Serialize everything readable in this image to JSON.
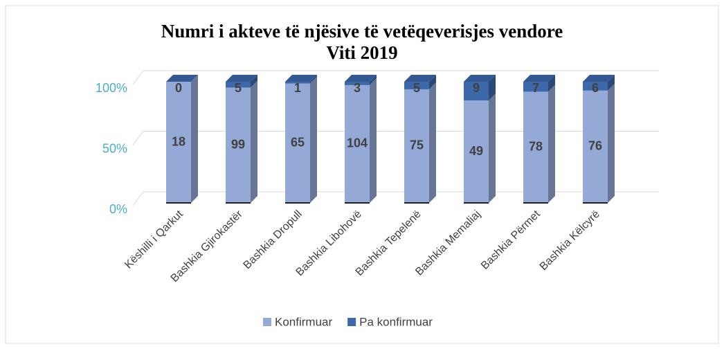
{
  "chart_data": {
    "type": "bar",
    "stacked_percent": true,
    "title": "Numri i akteve të njësive të vetëqeverisjes vendore",
    "subtitle": "Viti 2019",
    "categories": [
      "Këshilli i Qarkut",
      "Bashkia Gjirokastër",
      "Bashkia Dropull",
      "Bashkia Libohovë",
      "Bashkia Tepelenë",
      "Bashkia Memaliaj",
      "Bashkia Përmet",
      "Bashkia Këlcyrë"
    ],
    "series": [
      {
        "name": "Konfirmuar",
        "color": "#95a9d6",
        "values": [
          18,
          99,
          65,
          104,
          75,
          49,
          78,
          76
        ]
      },
      {
        "name": "Pa konfirmuar",
        "color": "#3d68aa",
        "values": [
          0,
          5,
          1,
          3,
          5,
          9,
          7,
          6
        ]
      }
    ],
    "ylim": [
      0,
      100
    ],
    "yticks": [
      {
        "value": 0,
        "label": "0%"
      },
      {
        "value": 50,
        "label": "50%"
      },
      {
        "value": 100,
        "label": "100%"
      }
    ],
    "grid": true,
    "legend": "bottom"
  }
}
